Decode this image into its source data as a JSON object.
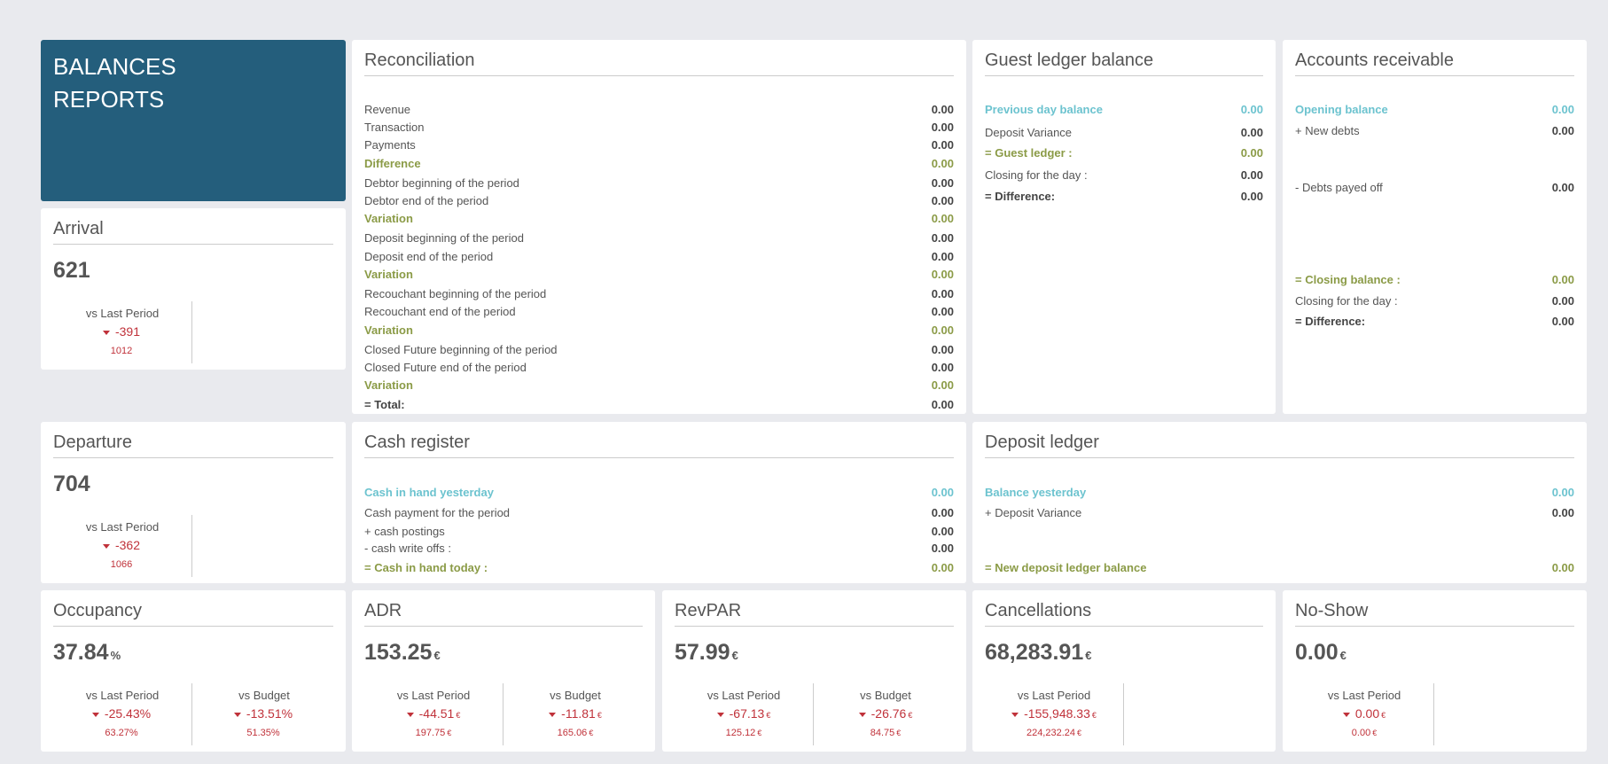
{
  "hero": {
    "title_line1": "BALANCES",
    "title_line2": "REPORTS"
  },
  "colors": {
    "hero_bg": "#245e7c",
    "teal": "#6cc3cf",
    "green": "#8b9b47",
    "negative": "#c0323a"
  },
  "reconciliation": {
    "title": "Reconciliation",
    "rows": [
      {
        "label": "Revenue",
        "value": "0.00",
        "style": "normal"
      },
      {
        "label": "Transaction",
        "value": "0.00",
        "style": "normal"
      },
      {
        "label": "Payments",
        "value": "0.00",
        "style": "normal"
      },
      {
        "label": "Difference",
        "value": "0.00",
        "style": "green"
      },
      {
        "label": "Debtor beginning of the period",
        "value": "0.00",
        "style": "normal"
      },
      {
        "label": "Debtor end of the period",
        "value": "0.00",
        "style": "normal"
      },
      {
        "label": "Variation",
        "value": "0.00",
        "style": "green"
      },
      {
        "label": "Deposit beginning of the period",
        "value": "0.00",
        "style": "normal"
      },
      {
        "label": "Deposit end of the period",
        "value": "0.00",
        "style": "normal"
      },
      {
        "label": "Variation",
        "value": "0.00",
        "style": "green"
      },
      {
        "label": "Recouchant beginning of the period",
        "value": "0.00",
        "style": "normal"
      },
      {
        "label": "Recouchant end of the period",
        "value": "0.00",
        "style": "normal"
      },
      {
        "label": "Variation",
        "value": "0.00",
        "style": "green"
      },
      {
        "label": "Closed Future beginning of the period",
        "value": "0.00",
        "style": "normal"
      },
      {
        "label": "Closed Future end of the period",
        "value": "0.00",
        "style": "normal"
      },
      {
        "label": "Variation",
        "value": "0.00",
        "style": "green"
      },
      {
        "label": "= Total:",
        "value": "0.00",
        "style": "strong"
      }
    ]
  },
  "guest_ledger": {
    "title": "Guest ledger balance",
    "rows": [
      {
        "label": "Previous day balance",
        "value": "0.00",
        "style": "teal"
      },
      {
        "label": "Deposit Variance",
        "value": "0.00",
        "style": "normal"
      },
      {
        "label": "= Guest ledger :",
        "value": "0.00",
        "style": "green"
      },
      {
        "label": "Closing for the day :",
        "value": "0.00",
        "style": "normal"
      },
      {
        "label": "= Difference:",
        "value": "0.00",
        "style": "strong"
      }
    ]
  },
  "accounts_receivable": {
    "title": "Accounts receivable",
    "rows": [
      {
        "label": "Opening balance",
        "value": "0.00",
        "style": "teal"
      },
      {
        "label": "+ New debts",
        "value": "0.00",
        "style": "normal"
      },
      {
        "label": "- Debts payed off",
        "value": "0.00",
        "style": "normal"
      },
      {
        "label": "= Closing balance :",
        "value": "0.00",
        "style": "green"
      },
      {
        "label": "Closing for the day :",
        "value": "0.00",
        "style": "normal"
      },
      {
        "label": "= Difference:",
        "value": "0.00",
        "style": "strong"
      }
    ]
  },
  "cash_register": {
    "title": "Cash register",
    "rows": [
      {
        "label": "Cash in hand yesterday",
        "value": "0.00",
        "style": "teal"
      },
      {
        "label": "Cash payment for the period",
        "value": "0.00",
        "style": "normal"
      },
      {
        "label": "+ cash postings",
        "value": "0.00",
        "style": "normal"
      },
      {
        "label": "- cash write offs :",
        "value": "0.00",
        "style": "normal"
      },
      {
        "label": "= Cash in hand today :",
        "value": "0.00",
        "style": "green"
      }
    ]
  },
  "deposit_ledger": {
    "title": "Deposit ledger",
    "rows": [
      {
        "label": "Balance yesterday",
        "value": "0.00",
        "style": "teal"
      },
      {
        "label": "+ Deposit Variance",
        "value": "0.00",
        "style": "normal"
      },
      {
        "label": "= New deposit ledger balance",
        "value": "0.00",
        "style": "green"
      }
    ]
  },
  "kpis": {
    "arrival": {
      "title": "Arrival",
      "value": "621",
      "unit": "",
      "last": {
        "label": "vs Last Period",
        "delta": "-391",
        "delta_unit": "",
        "prev": "1012",
        "prev_unit": ""
      }
    },
    "departure": {
      "title": "Departure",
      "value": "704",
      "unit": "",
      "last": {
        "label": "vs Last Period",
        "delta": "-362",
        "delta_unit": "",
        "prev": "1066",
        "prev_unit": ""
      }
    },
    "occupancy": {
      "title": "Occupancy",
      "value": "37.84",
      "unit": "%",
      "last": {
        "label": "vs Last Period",
        "delta": "-25.43%",
        "delta_unit": "",
        "prev": "63.27%",
        "prev_unit": ""
      },
      "budget": {
        "label": "vs Budget",
        "delta": "-13.51%",
        "delta_unit": "",
        "prev": "51.35%",
        "prev_unit": ""
      }
    },
    "adr": {
      "title": "ADR",
      "value": "153.25",
      "unit": "€",
      "last": {
        "label": "vs Last Period",
        "delta": "-44.51",
        "delta_unit": "€",
        "prev": "197.75",
        "prev_unit": "€"
      },
      "budget": {
        "label": "vs Budget",
        "delta": "-11.81",
        "delta_unit": "€",
        "prev": "165.06",
        "prev_unit": "€"
      }
    },
    "revpar": {
      "title": "RevPAR",
      "value": "57.99",
      "unit": "€",
      "last": {
        "label": "vs Last Period",
        "delta": "-67.13",
        "delta_unit": "€",
        "prev": "125.12",
        "prev_unit": "€"
      },
      "budget": {
        "label": "vs Budget",
        "delta": "-26.76",
        "delta_unit": "€",
        "prev": "84.75",
        "prev_unit": "€"
      }
    },
    "cancellations": {
      "title": "Cancellations",
      "value": "68,283.91",
      "unit": "€",
      "last": {
        "label": "vs Last Period",
        "delta": "-155,948.33",
        "delta_unit": "€",
        "prev": "224,232.24",
        "prev_unit": "€"
      }
    },
    "noshow": {
      "title": "No-Show",
      "value": "0.00",
      "unit": "€",
      "last": {
        "label": "vs Last Period",
        "delta": "0.00",
        "delta_unit": "€",
        "prev": "0.00",
        "prev_unit": "€"
      }
    }
  }
}
